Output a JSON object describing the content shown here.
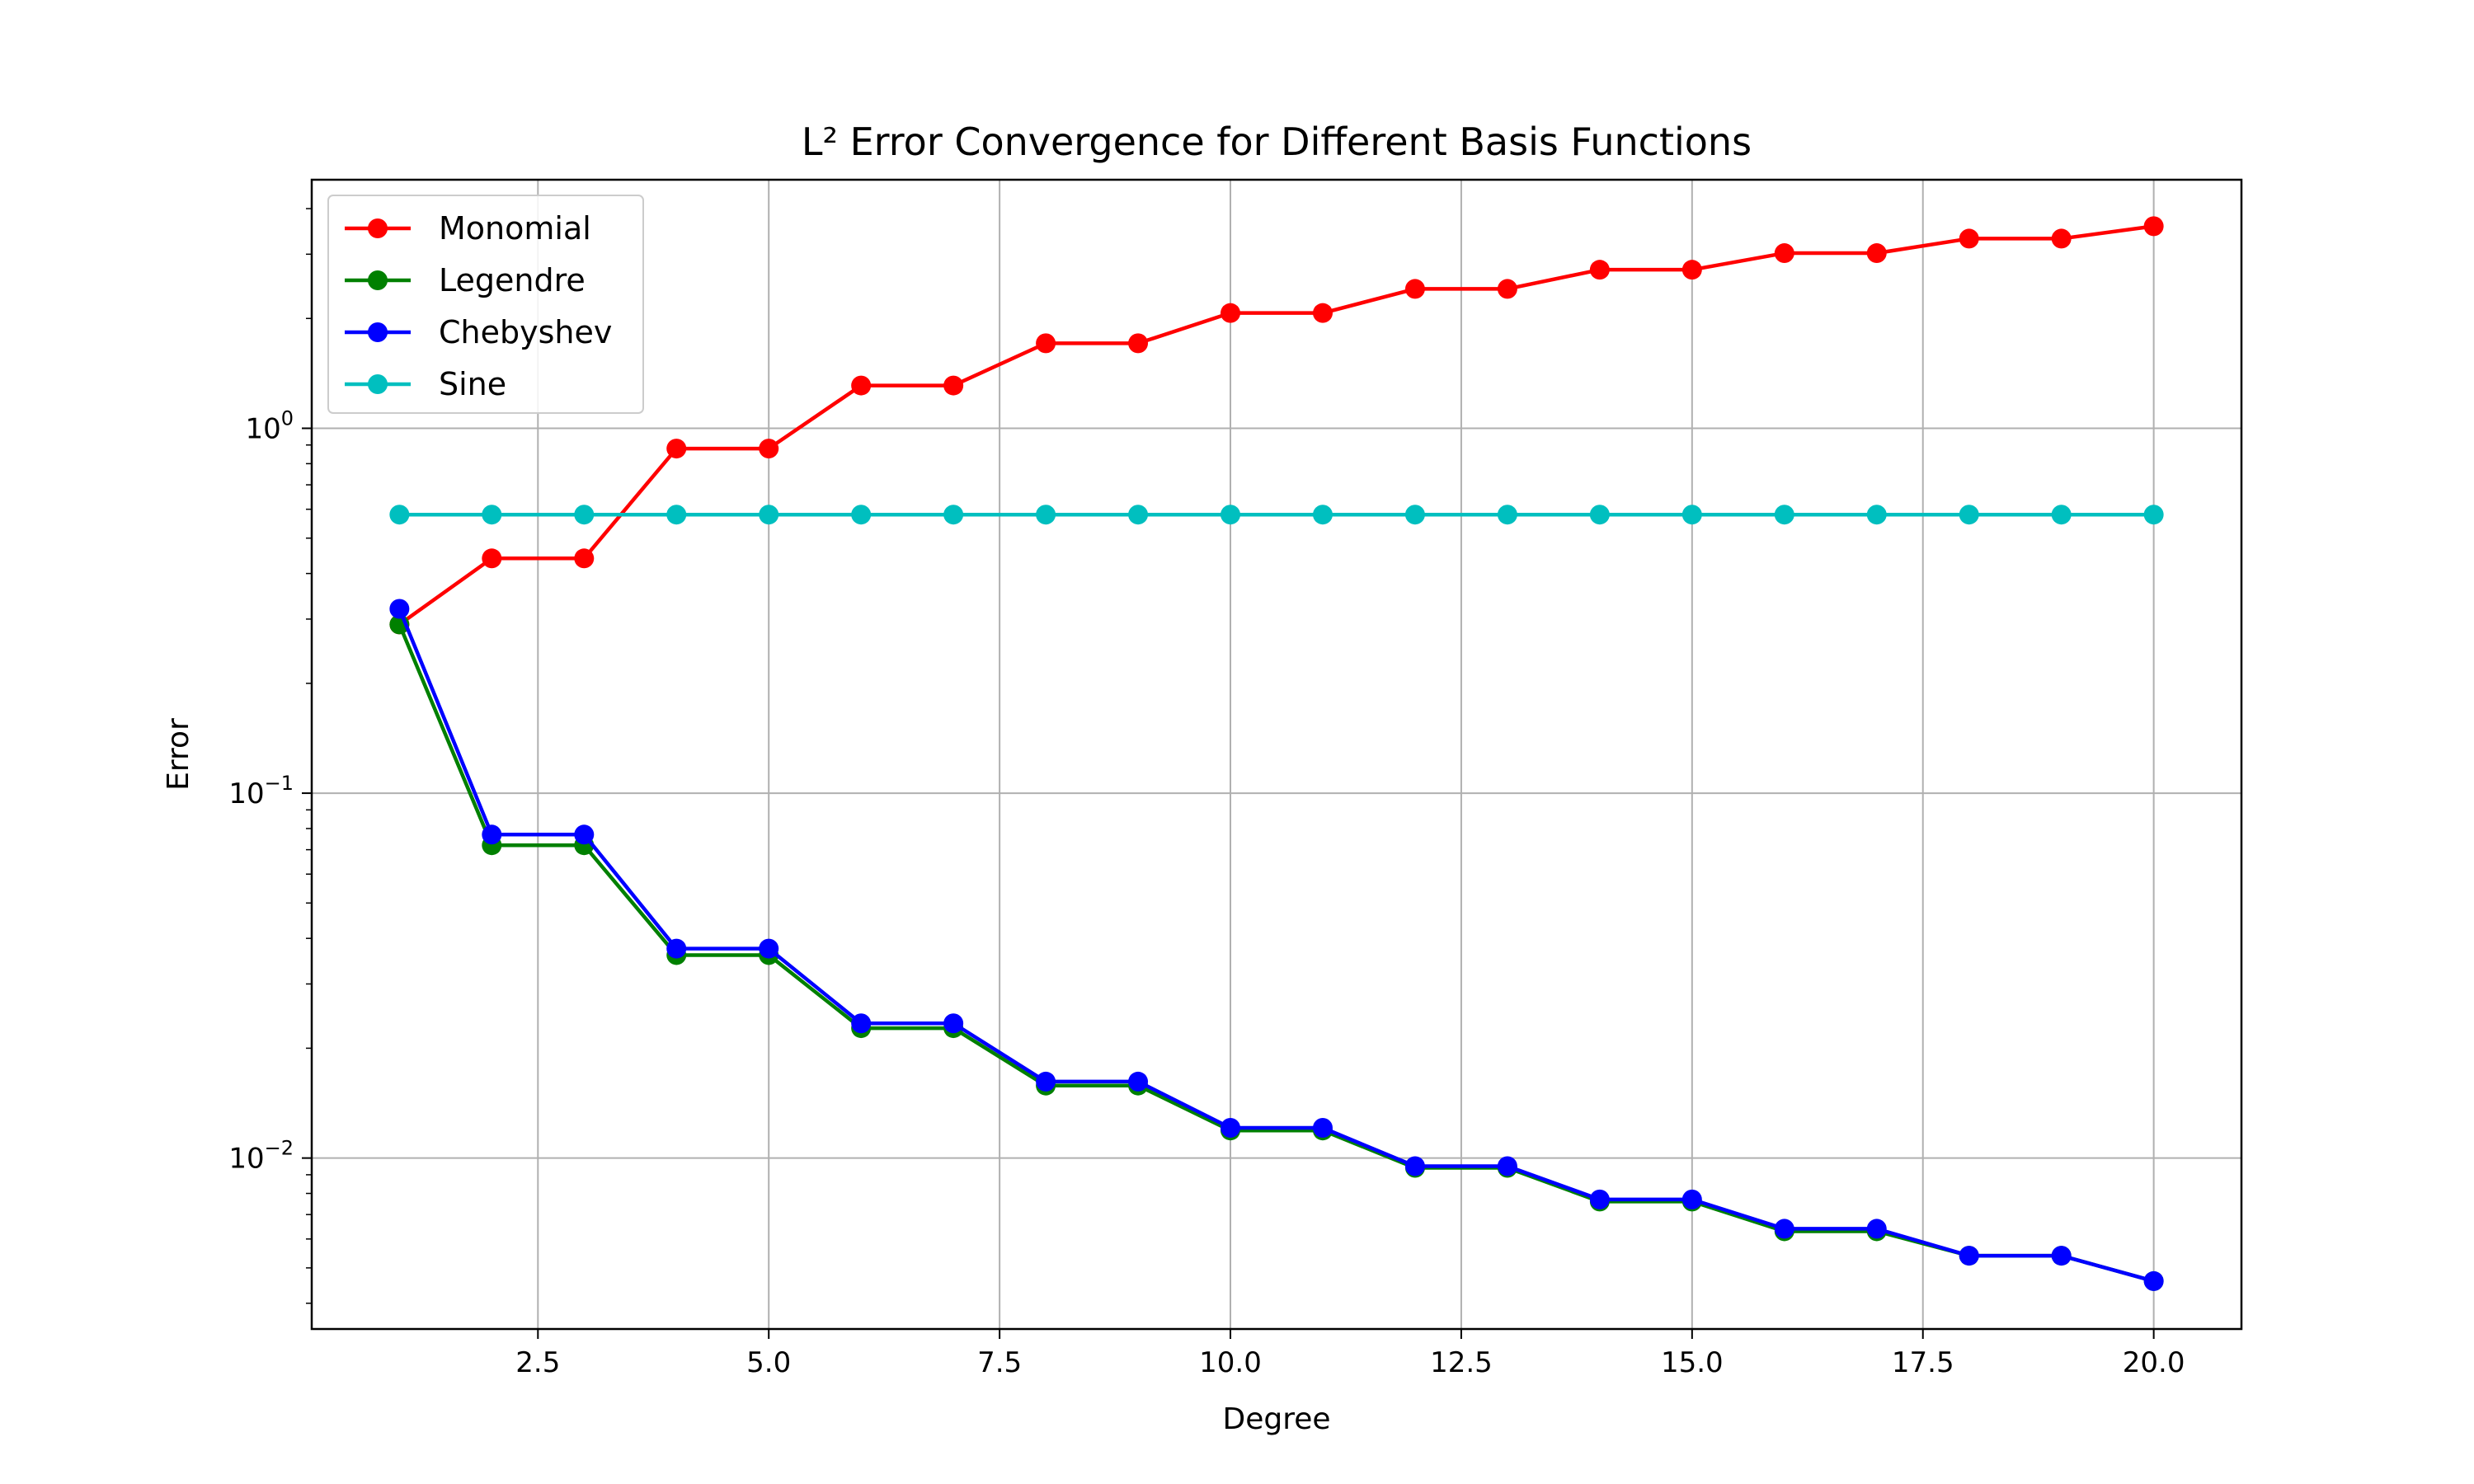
{
  "chart_data": {
    "type": "line",
    "title": "L² Error Convergence for Different Basis Functions",
    "xlabel": "Degree",
    "ylabel": "Error",
    "yscale": "log",
    "xlim": [
      0.05,
      20.95
    ],
    "ylim": [
      0.0034,
      4.8
    ],
    "grid": true,
    "legend_position": "upper-left",
    "x": [
      1,
      2,
      3,
      4,
      5,
      6,
      7,
      8,
      9,
      10,
      11,
      12,
      13,
      14,
      15,
      16,
      17,
      18,
      19,
      20
    ],
    "xticks": [
      2.5,
      5.0,
      7.5,
      10.0,
      12.5,
      15.0,
      17.5,
      20.0
    ],
    "xtick_labels": [
      "2.5",
      "5.0",
      "7.5",
      "10.0",
      "12.5",
      "15.0",
      "17.5",
      "20.0"
    ],
    "yticks": [
      {
        "value": 1,
        "base": "10",
        "exp": "0"
      },
      {
        "value": 0.1,
        "base": "10",
        "exp": "−1"
      },
      {
        "value": 0.01,
        "base": "10",
        "exp": "−2"
      }
    ],
    "series": [
      {
        "name": "Monomial",
        "color": "#ff0000",
        "values": [
          0.29,
          0.44,
          0.44,
          0.88,
          0.88,
          1.31,
          1.31,
          1.71,
          1.71,
          2.07,
          2.07,
          2.41,
          2.41,
          2.72,
          2.72,
          3.02,
          3.02,
          3.31,
          3.31,
          3.58
        ]
      },
      {
        "name": "Legendre",
        "color": "#008000",
        "values": [
          0.29,
          0.072,
          0.072,
          0.036,
          0.036,
          0.0227,
          0.0227,
          0.0158,
          0.0158,
          0.0119,
          0.0119,
          0.0094,
          0.0094,
          0.0076,
          0.0076,
          0.0063,
          0.0063,
          0.0054,
          0.0054,
          0.0046
        ]
      },
      {
        "name": "Chebyshev",
        "color": "#0000ff",
        "values": [
          0.32,
          0.077,
          0.077,
          0.0375,
          0.0375,
          0.0234,
          0.0234,
          0.0162,
          0.0162,
          0.0121,
          0.0121,
          0.0095,
          0.0095,
          0.0077,
          0.0077,
          0.0064,
          0.0064,
          0.0054,
          0.0054,
          0.0046
        ]
      },
      {
        "name": "Sine",
        "color": "#00bfbf",
        "values": [
          0.58,
          0.58,
          0.58,
          0.58,
          0.58,
          0.58,
          0.58,
          0.58,
          0.58,
          0.58,
          0.58,
          0.58,
          0.58,
          0.58,
          0.58,
          0.58,
          0.58,
          0.58,
          0.58,
          0.58
        ]
      }
    ]
  }
}
